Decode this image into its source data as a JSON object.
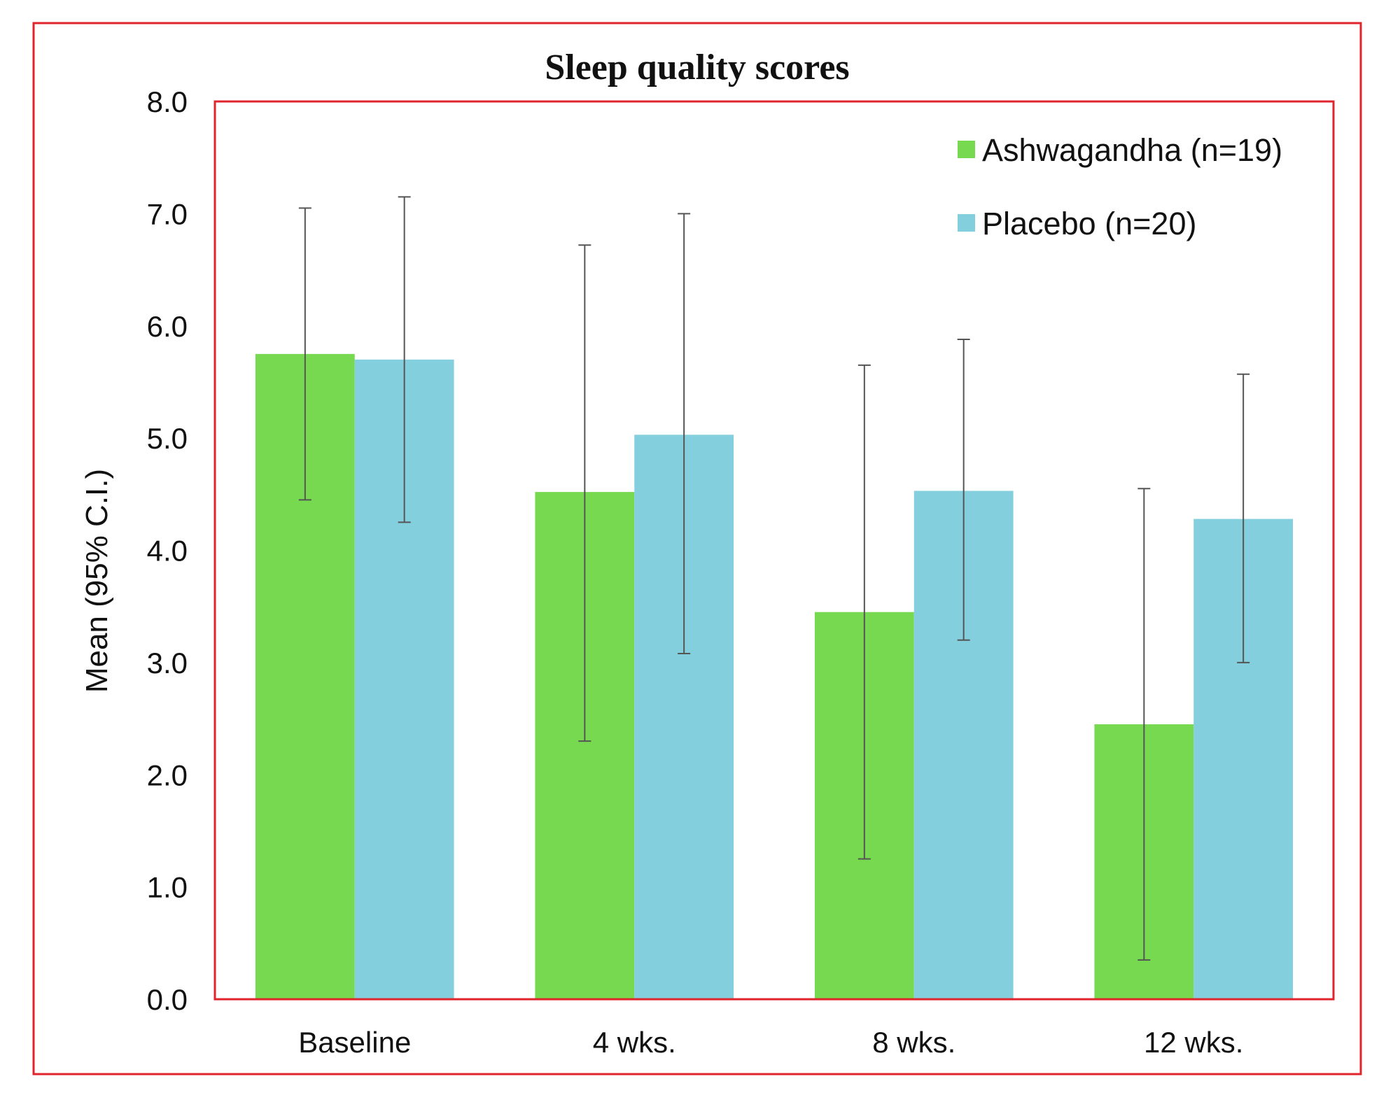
{
  "chart_data": {
    "type": "bar",
    "title": "Sleep quality scores",
    "xlabel": "",
    "ylabel": "Mean (95% C.I.)",
    "ylim": [
      0,
      8
    ],
    "yticks": [
      "0.0",
      "1.0",
      "2.0",
      "3.0",
      "4.0",
      "5.0",
      "6.0",
      "7.0",
      "8.0"
    ],
    "categories": [
      "Baseline",
      "4 wks.",
      "8 wks.",
      "12 wks."
    ],
    "series": [
      {
        "name": "Ashwagandha (n=19)",
        "color": "#76d950",
        "values": [
          5.75,
          4.52,
          3.45,
          2.45
        ],
        "ci_low": [
          4.45,
          2.3,
          1.25,
          0.35
        ],
        "ci_high": [
          7.05,
          6.72,
          5.65,
          4.55
        ]
      },
      {
        "name": "Placebo (n=20)",
        "color": "#83cfde",
        "values": [
          5.7,
          5.03,
          4.53,
          4.28
        ],
        "ci_low": [
          4.25,
          3.08,
          3.2,
          3.0
        ],
        "ci_high": [
          7.15,
          7.0,
          5.88,
          5.57
        ]
      }
    ],
    "grid": false,
    "legend_position": "top-right",
    "colors": {
      "frame": "#e0242b",
      "errorbar": "#555555"
    }
  }
}
